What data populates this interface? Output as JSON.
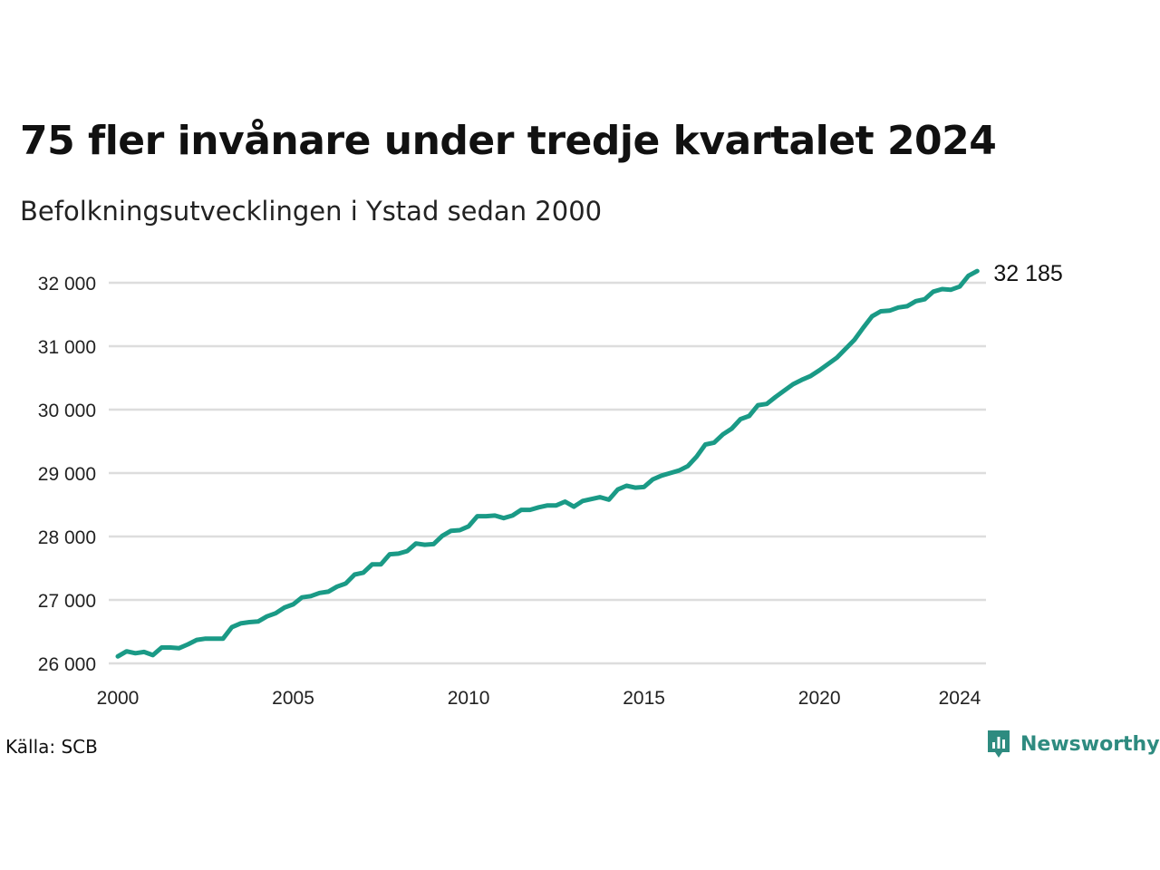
{
  "title": "75 fler invånare under tredje kvartalet 2024",
  "subtitle": "Befolkningsutvecklingen i Ystad sedan 2000",
  "source": "Källa: SCB",
  "brand": {
    "name": "Newsworthy",
    "icon": "newsworthy-logo-icon",
    "color": "#2e8b80"
  },
  "colors": {
    "line": "#1a9a86",
    "grid": "#dddddd"
  },
  "chart_data": {
    "type": "line",
    "title": "75 fler invånare under tredje kvartalet 2024",
    "subtitle": "Befolkningsutvecklingen i Ystad sedan 2000",
    "xlabel": "",
    "ylabel": "",
    "xlim": [
      2000,
      2024.75
    ],
    "ylim": [
      26000,
      32200
    ],
    "y_ticks": [
      26000,
      27000,
      28000,
      29000,
      30000,
      31000,
      32000
    ],
    "y_tick_labels": [
      "26 000",
      "27 000",
      "28 000",
      "29 000",
      "30 000",
      "31 000",
      "32 000"
    ],
    "x_ticks": [
      2000,
      2005,
      2010,
      2015,
      2020,
      2024
    ],
    "x_tick_labels": [
      "2000",
      "2005",
      "2010",
      "2015",
      "2020",
      "2024"
    ],
    "grid": "horizontal",
    "legend": "none",
    "end_label": "32 185",
    "series": [
      {
        "values": [
          [
            2000.0,
            26110
          ],
          [
            2000.25,
            26190
          ],
          [
            2000.5,
            26160
          ],
          [
            2000.75,
            26180
          ],
          [
            2001.0,
            26130
          ],
          [
            2001.25,
            26250
          ],
          [
            2001.5,
            26250
          ],
          [
            2001.75,
            26240
          ],
          [
            2002.0,
            26300
          ],
          [
            2002.25,
            26370
          ],
          [
            2002.5,
            26390
          ],
          [
            2002.75,
            26390
          ],
          [
            2003.0,
            26390
          ],
          [
            2003.25,
            26570
          ],
          [
            2003.5,
            26630
          ],
          [
            2003.75,
            26650
          ],
          [
            2004.0,
            26660
          ],
          [
            2004.25,
            26740
          ],
          [
            2004.5,
            26790
          ],
          [
            2004.75,
            26880
          ],
          [
            2005.0,
            26930
          ],
          [
            2005.25,
            27040
          ],
          [
            2005.5,
            27060
          ],
          [
            2005.75,
            27110
          ],
          [
            2006.0,
            27130
          ],
          [
            2006.25,
            27210
          ],
          [
            2006.5,
            27260
          ],
          [
            2006.75,
            27400
          ],
          [
            2007.0,
            27430
          ],
          [
            2007.25,
            27560
          ],
          [
            2007.5,
            27560
          ],
          [
            2007.75,
            27720
          ],
          [
            2008.0,
            27730
          ],
          [
            2008.25,
            27770
          ],
          [
            2008.5,
            27890
          ],
          [
            2008.75,
            27870
          ],
          [
            2009.0,
            27880
          ],
          [
            2009.25,
            28010
          ],
          [
            2009.5,
            28090
          ],
          [
            2009.75,
            28100
          ],
          [
            2010.0,
            28160
          ],
          [
            2010.25,
            28320
          ],
          [
            2010.5,
            28320
          ],
          [
            2010.75,
            28330
          ],
          [
            2011.0,
            28290
          ],
          [
            2011.25,
            28330
          ],
          [
            2011.5,
            28420
          ],
          [
            2011.75,
            28420
          ],
          [
            2012.0,
            28460
          ],
          [
            2012.25,
            28490
          ],
          [
            2012.5,
            28490
          ],
          [
            2012.75,
            28550
          ],
          [
            2013.0,
            28470
          ],
          [
            2013.25,
            28560
          ],
          [
            2013.5,
            28590
          ],
          [
            2013.75,
            28620
          ],
          [
            2014.0,
            28580
          ],
          [
            2014.25,
            28740
          ],
          [
            2014.5,
            28800
          ],
          [
            2014.75,
            28770
          ],
          [
            2015.0,
            28780
          ],
          [
            2015.25,
            28900
          ],
          [
            2015.5,
            28960
          ],
          [
            2015.75,
            29000
          ],
          [
            2016.0,
            29040
          ],
          [
            2016.25,
            29110
          ],
          [
            2016.5,
            29260
          ],
          [
            2016.75,
            29450
          ],
          [
            2017.0,
            29480
          ],
          [
            2017.25,
            29610
          ],
          [
            2017.5,
            29700
          ],
          [
            2017.75,
            29850
          ],
          [
            2018.0,
            29900
          ],
          [
            2018.25,
            30070
          ],
          [
            2018.5,
            30090
          ],
          [
            2018.75,
            30200
          ],
          [
            2019.0,
            30300
          ],
          [
            2019.25,
            30400
          ],
          [
            2019.5,
            30470
          ],
          [
            2019.75,
            30530
          ],
          [
            2020.0,
            30620
          ],
          [
            2020.25,
            30720
          ],
          [
            2020.5,
            30820
          ],
          [
            2020.75,
            30960
          ],
          [
            2021.0,
            31100
          ],
          [
            2021.25,
            31290
          ],
          [
            2021.5,
            31470
          ],
          [
            2021.75,
            31550
          ],
          [
            2022.0,
            31560
          ],
          [
            2022.25,
            31610
          ],
          [
            2022.5,
            31630
          ],
          [
            2022.75,
            31710
          ],
          [
            2023.0,
            31740
          ],
          [
            2023.25,
            31860
          ],
          [
            2023.5,
            31900
          ],
          [
            2023.75,
            31890
          ],
          [
            2024.0,
            31940
          ],
          [
            2024.25,
            32110
          ],
          [
            2024.5,
            32185
          ]
        ]
      }
    ]
  }
}
